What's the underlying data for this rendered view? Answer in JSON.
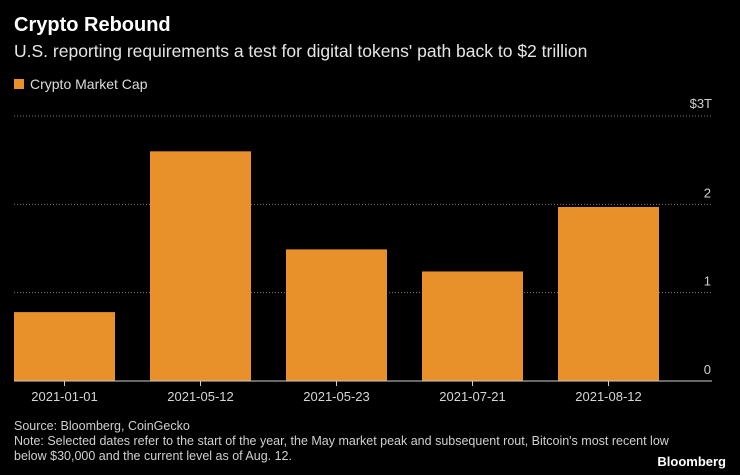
{
  "header": {
    "title": "Crypto Rebound",
    "subtitle": "U.S. reporting requirements a test for digital tokens' path back to $2 trillion"
  },
  "chart_data": {
    "type": "bar",
    "title": "Crypto Rebound",
    "subtitle": "U.S. reporting requirements a test for digital tokens' path back to $2 trillion",
    "xlabel": "",
    "ylabel": "",
    "unit_label": "$3T",
    "ylim": [
      0,
      3
    ],
    "yticks": [
      0,
      1,
      2
    ],
    "grid": true,
    "legend": "top-left",
    "color": "#e8912a",
    "categories": [
      "2021-01-01",
      "2021-05-12",
      "2021-05-23",
      "2021-07-21",
      "2021-08-12"
    ],
    "series": [
      {
        "name": "Crypto Market Cap",
        "values": [
          0.78,
          2.6,
          1.49,
          1.24,
          1.97
        ]
      }
    ]
  },
  "footer": {
    "source": "Source: Bloomberg, CoinGecko",
    "note": "Note: Selected dates refer to the start of the year, the May market peak and subsequent rout, Bitcoin's most recent low below $30,000 and the current level as of Aug. 12.",
    "brand": "Bloomberg"
  }
}
